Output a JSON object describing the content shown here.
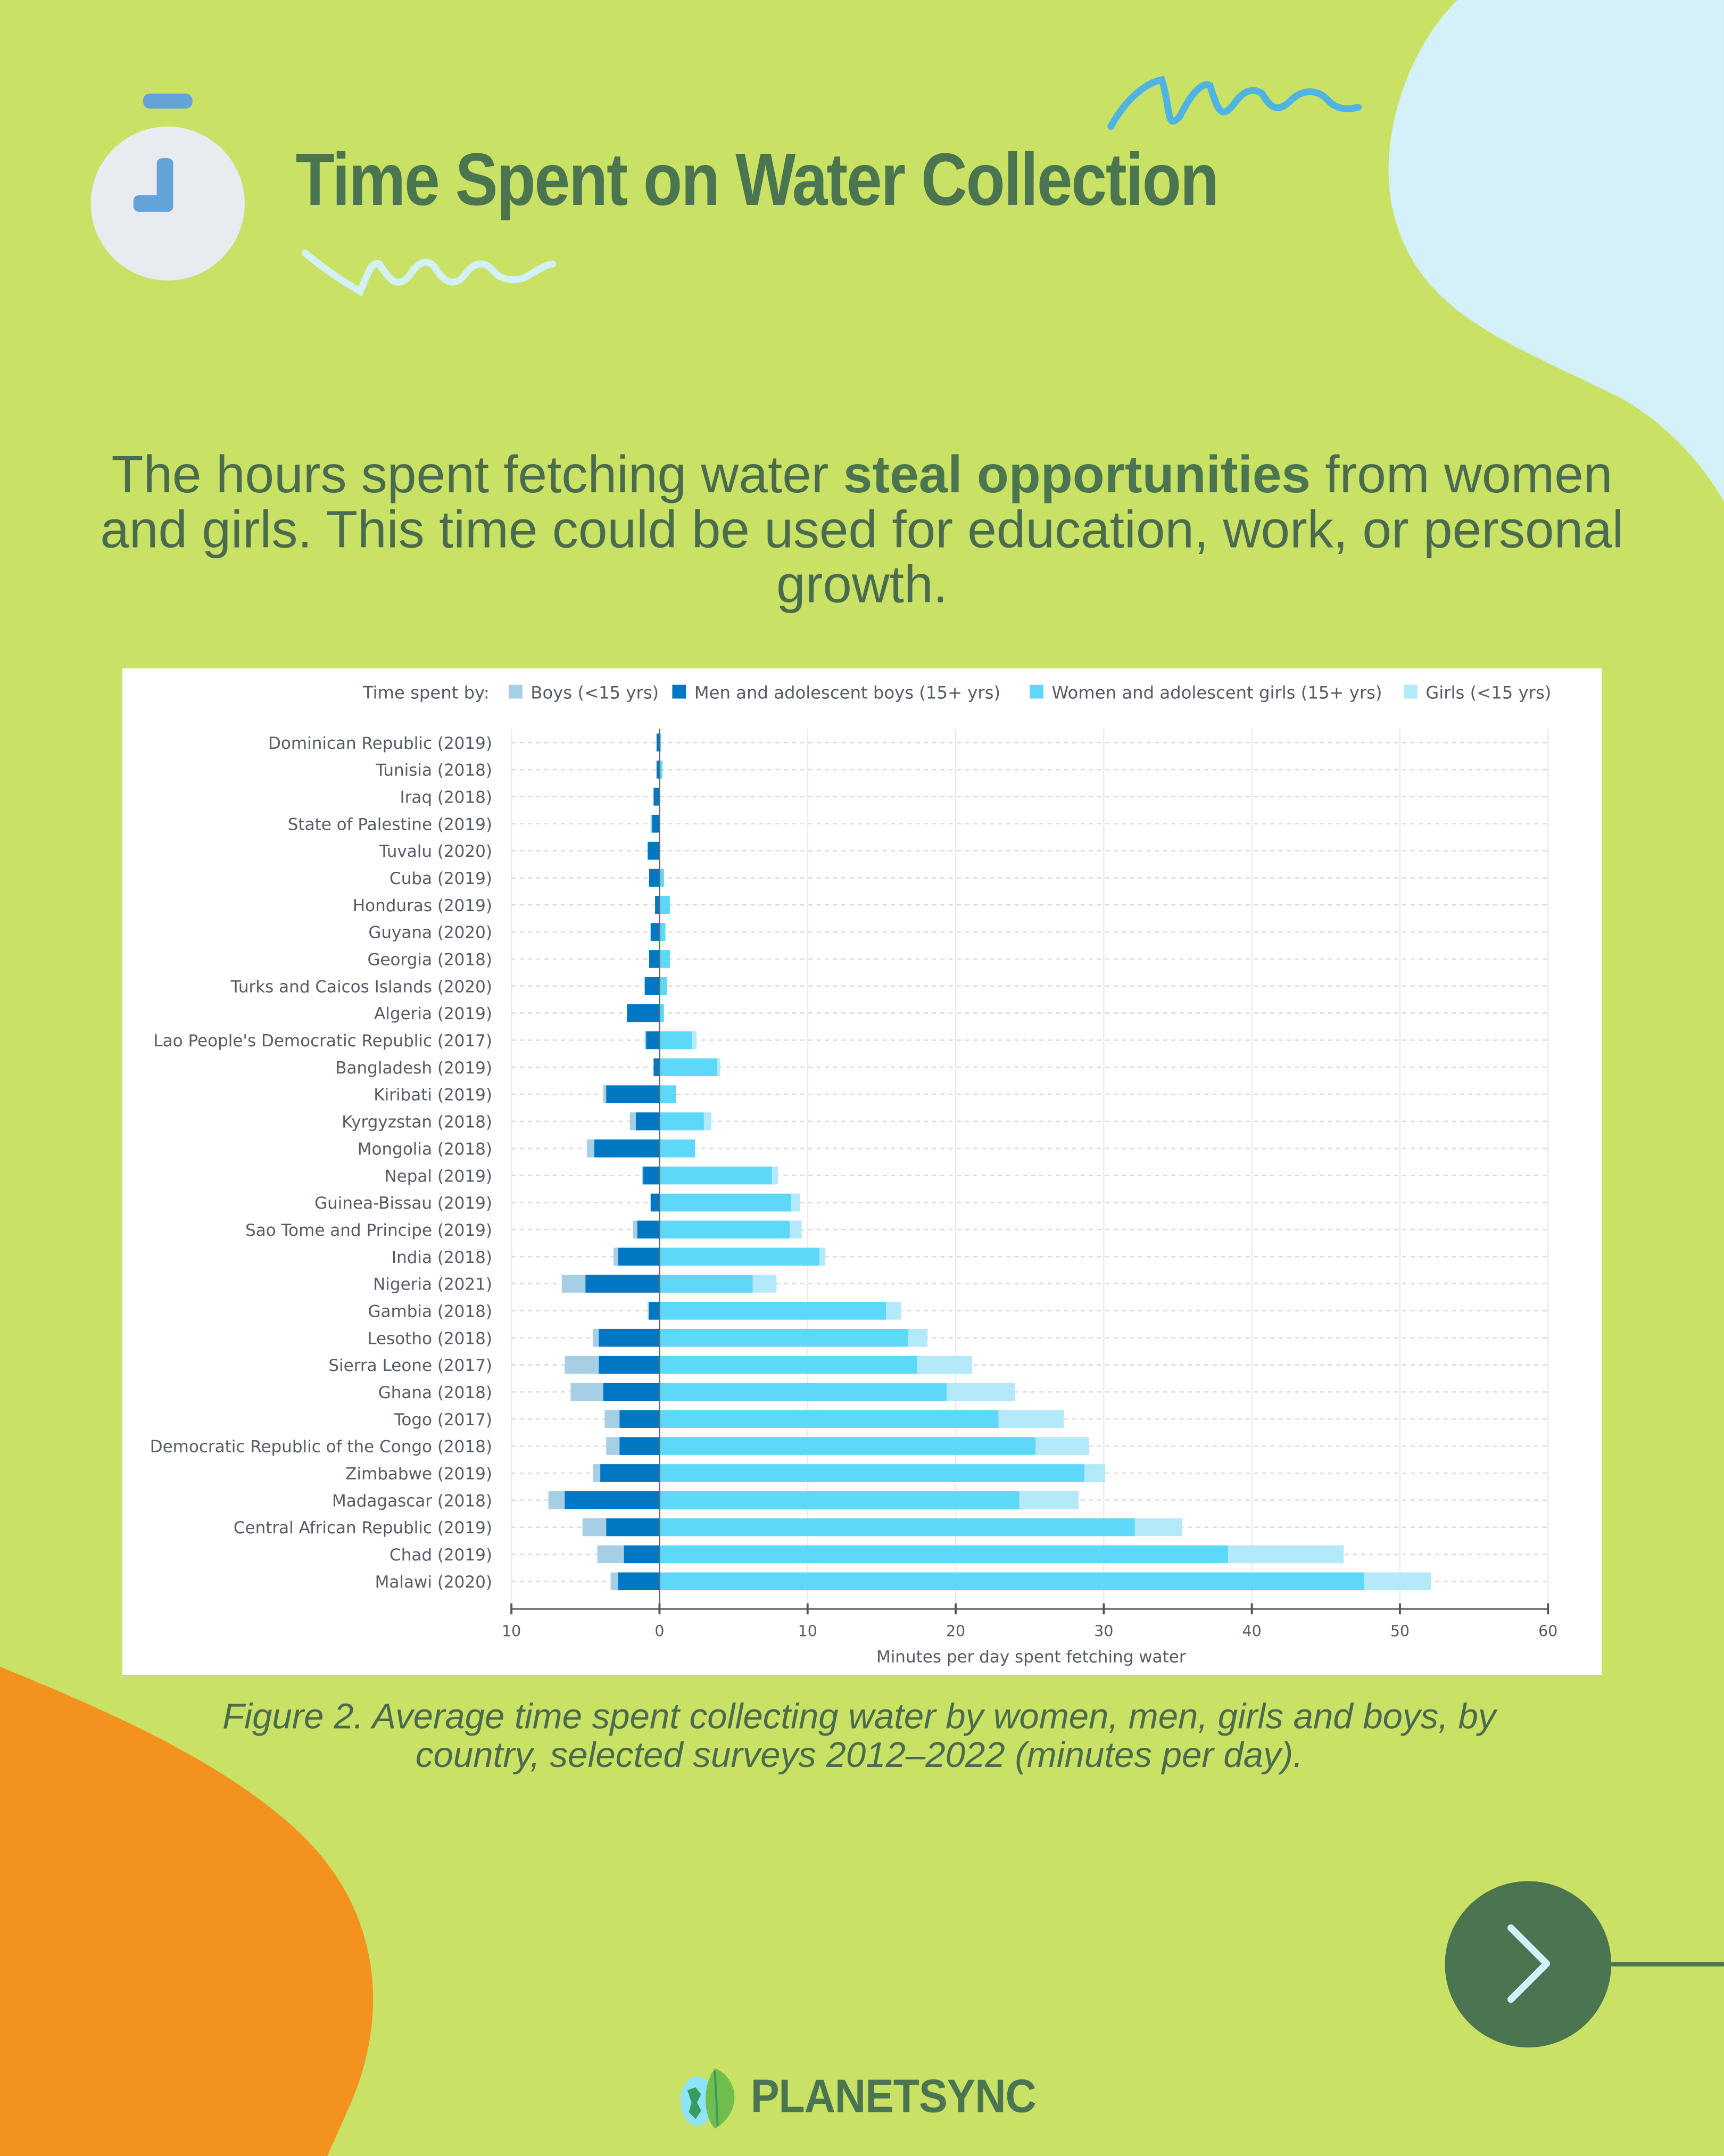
{
  "header": {
    "title": "Time Spent on Water Collection",
    "clock_icon": "stopwatch-icon"
  },
  "subtitle": {
    "before": "The hours spent fetching water ",
    "bold": "steal opportunities",
    "after": " from women and girls. This time could be used for education, work, or personal growth."
  },
  "caption": "Figure 2. Average time spent collecting water by women, men, girls and boys, by country, selected surveys 2012–2022 (minutes per day).",
  "footer": {
    "brand": "PLANETSYNC",
    "next_icon": "chevron-right-icon"
  },
  "colors": {
    "background": "#c9e265",
    "title": "#4a7550",
    "accent_orange": "#f4921f",
    "accent_blue": "#d4f0f8",
    "boys": "#a6cfe6",
    "men": "#0077c2",
    "women": "#5ed8f8",
    "girls": "#b3e9f9"
  },
  "chart_data": {
    "type": "bar",
    "orientation": "horizontal",
    "stacked": "diverging",
    "legend_title": "Time spent by:",
    "legend_position": "top",
    "xlabel": "Minutes per day spent fetching water",
    "ylabel": "",
    "xlim": [
      -10,
      60
    ],
    "xticks": [
      -10,
      0,
      10,
      20,
      30,
      40,
      50,
      60
    ],
    "xtick_labels": [
      "10",
      "0",
      "10",
      "20",
      "30",
      "40",
      "50",
      "60"
    ],
    "grid": true,
    "categories": [
      "Dominican Republic (2019)",
      "Tunisia (2018)",
      "Iraq (2018)",
      "State of Palestine (2019)",
      "Tuvalu (2020)",
      "Cuba (2019)",
      "Honduras (2019)",
      "Guyana (2020)",
      "Georgia (2018)",
      "Turks and Caicos Islands (2020)",
      "Algeria (2019)",
      "Lao People's Democratic Republic (2017)",
      "Bangladesh (2019)",
      "Kiribati (2019)",
      "Kyrgyzstan (2018)",
      "Mongolia (2018)",
      "Nepal (2019)",
      "Guinea-Bissau (2019)",
      "Sao Tome and Principe (2019)",
      "India (2018)",
      "Nigeria (2021)",
      "Gambia (2018)",
      "Lesotho (2018)",
      "Sierra Leone (2017)",
      "Ghana (2018)",
      "Togo (2017)",
      "Democratic Republic of the Congo (2018)",
      "Zimbabwe (2019)",
      "Madagascar (2018)",
      "Central African Republic (2019)",
      "Chad (2019)",
      "Malawi (2020)"
    ],
    "series": [
      {
        "name": "Boys (<15 yrs)",
        "side": "left",
        "values": [
          0,
          0,
          0,
          0.1,
          0,
          0,
          0,
          0,
          0,
          0,
          0,
          0.1,
          0,
          0.2,
          0.4,
          0.5,
          0.1,
          0,
          0.3,
          0.3,
          1.6,
          0.1,
          0.4,
          2.3,
          2.2,
          1.0,
          0.9,
          0.5,
          1.1,
          1.6,
          1.8,
          0.5
        ]
      },
      {
        "name": "Men and adolescent boys (15+ yrs)",
        "side": "left",
        "values": [
          0.2,
          0.2,
          0.4,
          0.5,
          0.8,
          0.7,
          0.3,
          0.6,
          0.7,
          1.0,
          2.2,
          0.9,
          0.4,
          3.6,
          1.6,
          4.4,
          1.1,
          0.6,
          1.5,
          2.8,
          5.0,
          0.7,
          4.1,
          4.1,
          3.8,
          2.7,
          2.7,
          4.0,
          6.4,
          3.6,
          2.4,
          2.8
        ]
      },
      {
        "name": "Women and adolescent girls (15+ yrs)",
        "side": "right",
        "values": [
          0.1,
          0.2,
          0,
          0,
          0,
          0.3,
          0.7,
          0.4,
          0.7,
          0.5,
          0.3,
          2.2,
          3.9,
          1.1,
          3.0,
          2.4,
          7.6,
          8.9,
          8.8,
          10.8,
          6.3,
          15.3,
          16.8,
          17.4,
          19.4,
          22.9,
          25.4,
          28.7,
          24.3,
          32.1,
          38.4,
          47.6
        ]
      },
      {
        "name": "Girls (<15 yrs)",
        "side": "right",
        "values": [
          0,
          0,
          0,
          0,
          0,
          0,
          0,
          0,
          0,
          0,
          0,
          0.3,
          0.2,
          0,
          0.5,
          0,
          0.4,
          0.6,
          0.8,
          0.4,
          1.6,
          1.0,
          1.3,
          3.7,
          4.6,
          4.4,
          3.6,
          1.4,
          4.0,
          3.2,
          7.8,
          4.5
        ]
      }
    ]
  }
}
